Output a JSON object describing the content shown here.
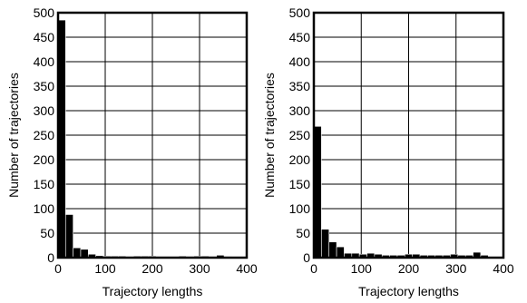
{
  "chart_data": [
    {
      "type": "bar",
      "xlabel": "Trajectory lengths",
      "ylabel": "Number of trajectories",
      "xlim": [
        0,
        400
      ],
      "ylim": [
        0,
        500
      ],
      "grid": true,
      "bin_width": 16,
      "xticks": [
        0,
        100,
        200,
        300,
        400
      ],
      "yticks": [
        0,
        50,
        100,
        150,
        200,
        250,
        300,
        350,
        400,
        450,
        500
      ],
      "bins": [
        {
          "x": 8,
          "y": 485
        },
        {
          "x": 24,
          "y": 88
        },
        {
          "x": 40,
          "y": 20
        },
        {
          "x": 56,
          "y": 17
        },
        {
          "x": 72,
          "y": 7
        },
        {
          "x": 88,
          "y": 4
        },
        {
          "x": 104,
          "y": 3
        },
        {
          "x": 120,
          "y": 3
        },
        {
          "x": 136,
          "y": 3
        },
        {
          "x": 152,
          "y": 2
        },
        {
          "x": 168,
          "y": 3
        },
        {
          "x": 184,
          "y": 3
        },
        {
          "x": 200,
          "y": 3
        },
        {
          "x": 216,
          "y": 2
        },
        {
          "x": 232,
          "y": 2
        },
        {
          "x": 248,
          "y": 2
        },
        {
          "x": 264,
          "y": 3
        },
        {
          "x": 280,
          "y": 2
        },
        {
          "x": 296,
          "y": 3
        },
        {
          "x": 312,
          "y": 3
        },
        {
          "x": 328,
          "y": 2
        },
        {
          "x": 344,
          "y": 5
        },
        {
          "x": 360,
          "y": 2
        }
      ]
    },
    {
      "type": "bar",
      "xlabel": "Trajectory lengths",
      "ylabel": "Number of trajectories",
      "xlim": [
        0,
        400
      ],
      "ylim": [
        0,
        500
      ],
      "grid": true,
      "bin_width": 16,
      "xticks": [
        0,
        100,
        200,
        300,
        400
      ],
      "yticks": [
        0,
        50,
        100,
        150,
        200,
        250,
        300,
        350,
        400,
        450,
        500
      ],
      "bins": [
        {
          "x": 8,
          "y": 268
        },
        {
          "x": 24,
          "y": 58
        },
        {
          "x": 40,
          "y": 32
        },
        {
          "x": 56,
          "y": 22
        },
        {
          "x": 72,
          "y": 9
        },
        {
          "x": 88,
          "y": 9
        },
        {
          "x": 104,
          "y": 7
        },
        {
          "x": 120,
          "y": 9
        },
        {
          "x": 136,
          "y": 7
        },
        {
          "x": 152,
          "y": 5
        },
        {
          "x": 168,
          "y": 5
        },
        {
          "x": 184,
          "y": 5
        },
        {
          "x": 200,
          "y": 7
        },
        {
          "x": 216,
          "y": 7
        },
        {
          "x": 232,
          "y": 5
        },
        {
          "x": 248,
          "y": 5
        },
        {
          "x": 264,
          "y": 5
        },
        {
          "x": 280,
          "y": 5
        },
        {
          "x": 296,
          "y": 7
        },
        {
          "x": 312,
          "y": 5
        },
        {
          "x": 328,
          "y": 5
        },
        {
          "x": 344,
          "y": 11
        },
        {
          "x": 360,
          "y": 5
        }
      ]
    }
  ]
}
